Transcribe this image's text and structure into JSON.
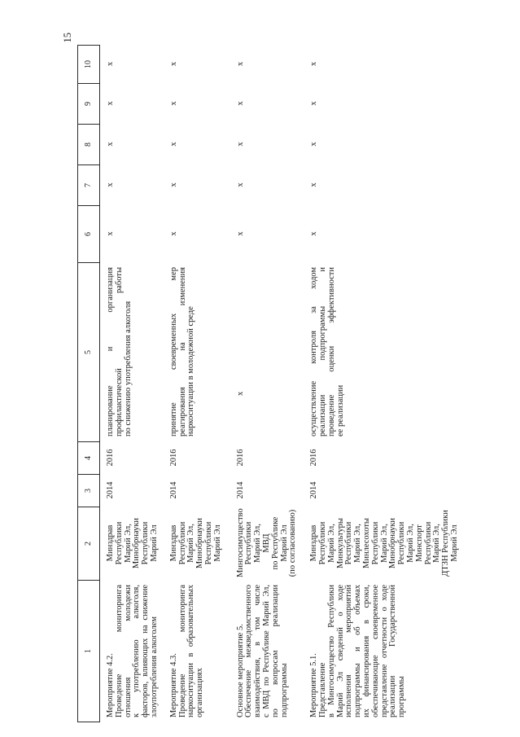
{
  "page_number": "15",
  "table": {
    "column_numbers": [
      "1",
      "2",
      "3",
      "4",
      "5",
      "6",
      "7",
      "8",
      "9",
      "10"
    ],
    "rows": [
      {
        "activity_title": "Мероприятие 4.2.",
        "activity_lines": [
          "Проведение мониторинга",
          "отношения молодежи",
          "к употреблению алкоголя,",
          "факторов, влияющих на снижение",
          "злоупотребления алкоголем"
        ],
        "executors": [
          "Минздрав",
          "Республики",
          "Марий Эл,",
          "Минобрнауки",
          "Республики",
          "Марий Эл"
        ],
        "year_start": "2014",
        "year_end": "2016",
        "result_lines": [
          "планирование и организация",
          "профилактической работы",
          "по снижению употребления алкоголя"
        ],
        "marks": [
          "х",
          "х",
          "х",
          "х",
          "х"
        ]
      },
      {
        "activity_title": "Мероприятие 4.3.",
        "activity_lines": [
          "Проведение мониторинга",
          "наркоситуации в образовательных",
          "организациях"
        ],
        "executors": [
          "Минздрав",
          "Республики",
          "Марий Эл,",
          "Минобрнауки",
          "Республики",
          "Марий Эл"
        ],
        "year_start": "2014",
        "year_end": "2016",
        "result_lines": [
          "принятие своевременных мер",
          "реагирования на изменения",
          "наркоситуации в молодежной среде"
        ],
        "marks": [
          "х",
          "х",
          "х",
          "х",
          "х"
        ]
      },
      {
        "activity_title": "Основное мероприятие 5.",
        "activity_lines": [
          "Обеспечение межведомственного",
          "взаимодействия, в том числе",
          "с МВД по Республике Марий Эл,",
          "по вопросам реализации",
          "подпрограммы"
        ],
        "executors": [
          "Мингосимущество",
          "Республики",
          "Марий Эл,",
          "МВД",
          "по Республике",
          "Марий Эл",
          "(по согласованию)"
        ],
        "year_start": "2014",
        "year_end": "2016",
        "result_lines": [
          "х"
        ],
        "marks": [
          "х",
          "х",
          "х",
          "х",
          "х"
        ]
      },
      {
        "activity_title": "Мероприятие 5.1.",
        "activity_lines": [
          "Представление",
          "в Мингосимущество Республики",
          "Марий Эл сведений о ходе",
          "исполнения мероприятий",
          "подпрограммы и об объемах",
          "их финансирования в сроки,",
          "обеспечивающие своевременное",
          "представление отчетности о ходе",
          "реализации Государственной",
          "программы"
        ],
        "executors": [
          "Минздрав",
          "Республики",
          "Марий Эл,",
          "Минкультуры",
          "Республики",
          "Марий Эл,",
          "Минлесохоты",
          "Республики",
          "Марий Эл,",
          "Минобрнауки",
          "Республики",
          "Марий Эл,",
          "Минспорт",
          "Республики",
          "Марий Эл,",
          "ДТЗН Республики",
          "Марий Эл"
        ],
        "year_start": "2014",
        "year_end": "2016",
        "result_lines": [
          "осуществление контроля за ходом",
          "реализации подпрограммы и",
          "проведение оценки эффективности",
          "ее реализации"
        ],
        "marks": [
          "х",
          "х",
          "х",
          "х",
          "х"
        ]
      }
    ]
  }
}
